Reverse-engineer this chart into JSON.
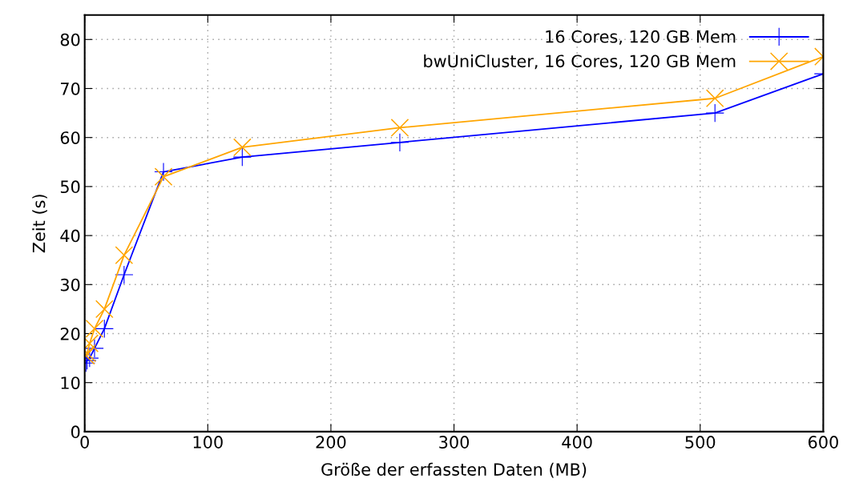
{
  "chart_data": {
    "type": "line",
    "xlabel": "Größe der erfassten Daten (MB)",
    "ylabel": "Zeit (s)",
    "xlim": [
      0,
      600
    ],
    "ylim": [
      0,
      85
    ],
    "xticks": [
      0,
      100,
      200,
      300,
      400,
      500,
      600
    ],
    "yticks": [
      0,
      10,
      20,
      30,
      40,
      50,
      60,
      70,
      80
    ],
    "grid": true,
    "legend": "top right",
    "series": [
      {
        "name": "16 Cores, 120 GB Mem",
        "color": "#0000ff",
        "marker": "cross",
        "x": [
          1,
          2,
          4,
          8,
          16,
          32,
          64,
          128,
          256,
          512,
          600
        ],
        "values": [
          14,
          14.5,
          15,
          17,
          21,
          32,
          53,
          56,
          59,
          65,
          73
        ]
      },
      {
        "name": "bwUniCluster, 16 Cores, 120 GB Mem",
        "color": "#ffa500",
        "marker": "x",
        "x": [
          1,
          2,
          4,
          8,
          16,
          32,
          64,
          128,
          256,
          512,
          600
        ],
        "values": [
          15.5,
          16,
          18,
          21,
          25,
          36,
          52,
          58,
          62,
          68,
          76.5
        ]
      }
    ]
  }
}
